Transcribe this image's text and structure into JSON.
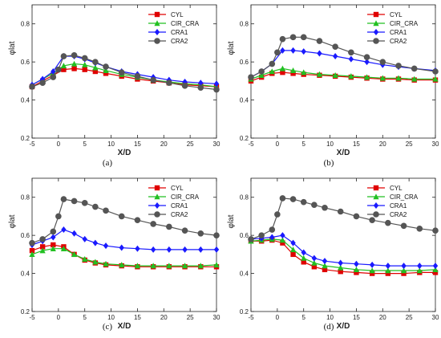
{
  "series_styles": [
    {
      "name": "CYL",
      "color": "#e00000",
      "marker": "square"
    },
    {
      "name": "CIR_CRA",
      "color": "#22c022",
      "marker": "triangle"
    },
    {
      "name": "CRA1",
      "color": "#1a1aff",
      "marker": "diamond"
    },
    {
      "name": "CRA2",
      "color": "#555555",
      "marker": "circle"
    }
  ],
  "chart_data": [
    {
      "type": "line",
      "caption": "(a)",
      "xlabel": "X/D",
      "ylabel": "φlat",
      "xlim": [
        -5,
        30
      ],
      "ylim": [
        0.2,
        0.9
      ],
      "xticks": [
        -5,
        0,
        5,
        10,
        15,
        20,
        25,
        30
      ],
      "yticks": [
        0.2,
        0.4,
        0.6,
        0.8
      ],
      "legend": "top-right",
      "series": [
        {
          "name": "CYL",
          "x": [
            -5,
            -3,
            -1,
            1,
            3,
            5,
            7,
            9,
            12,
            15,
            18,
            21,
            24,
            27,
            30
          ],
          "y": [
            0.47,
            0.5,
            0.53,
            0.56,
            0.565,
            0.56,
            0.55,
            0.54,
            0.525,
            0.51,
            0.5,
            0.49,
            0.48,
            0.475,
            0.47
          ]
        },
        {
          "name": "CIR_CRA",
          "x": [
            -5,
            -3,
            -1,
            1,
            3,
            5,
            7,
            9,
            12,
            15,
            18,
            21,
            24,
            27,
            30
          ],
          "y": [
            0.48,
            0.51,
            0.54,
            0.58,
            0.59,
            0.585,
            0.57,
            0.555,
            0.535,
            0.52,
            0.505,
            0.495,
            0.485,
            0.48,
            0.47
          ]
        },
        {
          "name": "CRA1",
          "x": [
            -5,
            -3,
            -1,
            1,
            3,
            5,
            7,
            9,
            12,
            15,
            18,
            21,
            24,
            27,
            30
          ],
          "y": [
            0.48,
            0.51,
            0.55,
            0.63,
            0.63,
            0.615,
            0.595,
            0.575,
            0.55,
            0.535,
            0.52,
            0.505,
            0.495,
            0.49,
            0.485
          ]
        },
        {
          "name": "CRA2",
          "x": [
            -5,
            -3,
            -1,
            0,
            1,
            3,
            5,
            7,
            9,
            12,
            15,
            18,
            21,
            24,
            27,
            30
          ],
          "y": [
            0.47,
            0.49,
            0.52,
            0.56,
            0.63,
            0.635,
            0.62,
            0.6,
            0.575,
            0.545,
            0.525,
            0.505,
            0.49,
            0.475,
            0.465,
            0.455
          ]
        }
      ]
    },
    {
      "type": "line",
      "caption": "(b)",
      "xlabel": "X/D",
      "ylabel": "φlat",
      "xlim": [
        -5,
        30
      ],
      "ylim": [
        0.2,
        0.9
      ],
      "xticks": [
        -5,
        0,
        5,
        10,
        15,
        20,
        25,
        30
      ],
      "yticks": [
        0.2,
        0.4,
        0.6,
        0.8
      ],
      "legend": "top-right",
      "series": [
        {
          "name": "CYL",
          "x": [
            -5,
            -3,
            -1,
            1,
            3,
            5,
            8,
            11,
            14,
            17,
            20,
            23,
            26,
            30
          ],
          "y": [
            0.5,
            0.52,
            0.54,
            0.545,
            0.54,
            0.535,
            0.53,
            0.525,
            0.52,
            0.515,
            0.51,
            0.51,
            0.505,
            0.505
          ]
        },
        {
          "name": "CIR_CRA",
          "x": [
            -5,
            -3,
            -1,
            1,
            3,
            5,
            8,
            11,
            14,
            17,
            20,
            23,
            26,
            30
          ],
          "y": [
            0.51,
            0.53,
            0.55,
            0.565,
            0.555,
            0.545,
            0.535,
            0.53,
            0.525,
            0.52,
            0.515,
            0.515,
            0.51,
            0.51
          ]
        },
        {
          "name": "CRA1",
          "x": [
            -5,
            -3,
            -1,
            1,
            3,
            5,
            8,
            11,
            14,
            17,
            20,
            23,
            26,
            30
          ],
          "y": [
            0.52,
            0.55,
            0.59,
            0.66,
            0.66,
            0.655,
            0.645,
            0.63,
            0.615,
            0.6,
            0.585,
            0.575,
            0.565,
            0.555
          ]
        },
        {
          "name": "CRA2",
          "x": [
            -5,
            -3,
            -1,
            0,
            1,
            3,
            5,
            8,
            11,
            14,
            17,
            20,
            23,
            26,
            30
          ],
          "y": [
            0.52,
            0.55,
            0.59,
            0.65,
            0.72,
            0.73,
            0.73,
            0.71,
            0.68,
            0.65,
            0.625,
            0.6,
            0.58,
            0.565,
            0.55
          ]
        }
      ]
    },
    {
      "type": "line",
      "caption": "(c)",
      "xlabel": "X/D",
      "ylabel": "φlat",
      "xlim": [
        -5,
        30
      ],
      "ylim": [
        0.2,
        0.9
      ],
      "xticks": [
        -5,
        0,
        5,
        10,
        15,
        20,
        25,
        30
      ],
      "yticks": [
        0.2,
        0.4,
        0.6,
        0.8
      ],
      "legend": "top-right",
      "series": [
        {
          "name": "CYL",
          "x": [
            -5,
            -3,
            -1,
            1,
            3,
            5,
            7,
            9,
            12,
            15,
            18,
            21,
            24,
            27,
            30
          ],
          "y": [
            0.52,
            0.54,
            0.55,
            0.54,
            0.5,
            0.47,
            0.455,
            0.445,
            0.44,
            0.435,
            0.435,
            0.435,
            0.435,
            0.435,
            0.435
          ]
        },
        {
          "name": "CIR_CRA",
          "x": [
            -5,
            -3,
            -1,
            1,
            3,
            5,
            7,
            9,
            12,
            15,
            18,
            21,
            24,
            27,
            30
          ],
          "y": [
            0.5,
            0.52,
            0.53,
            0.53,
            0.5,
            0.475,
            0.46,
            0.45,
            0.445,
            0.44,
            0.44,
            0.44,
            0.44,
            0.44,
            0.445
          ]
        },
        {
          "name": "CRA1",
          "x": [
            -5,
            -3,
            -1,
            1,
            3,
            5,
            7,
            9,
            12,
            15,
            18,
            21,
            24,
            27,
            30
          ],
          "y": [
            0.55,
            0.57,
            0.59,
            0.63,
            0.61,
            0.58,
            0.56,
            0.545,
            0.535,
            0.53,
            0.525,
            0.525,
            0.525,
            0.525,
            0.525
          ]
        },
        {
          "name": "CRA2",
          "x": [
            -5,
            -3,
            -1,
            0,
            1,
            3,
            5,
            7,
            9,
            12,
            15,
            18,
            21,
            24,
            27,
            30
          ],
          "y": [
            0.56,
            0.58,
            0.62,
            0.7,
            0.79,
            0.78,
            0.77,
            0.75,
            0.73,
            0.7,
            0.68,
            0.66,
            0.645,
            0.625,
            0.61,
            0.6
          ]
        }
      ]
    },
    {
      "type": "line",
      "caption": "(d)",
      "xlabel": "X/D",
      "ylabel": "φlat",
      "xlim": [
        -5,
        30
      ],
      "ylim": [
        0.2,
        0.9
      ],
      "xticks": [
        -5,
        0,
        5,
        10,
        15,
        20,
        25,
        30
      ],
      "yticks": [
        0.2,
        0.4,
        0.6,
        0.8
      ],
      "legend": "top-right",
      "series": [
        {
          "name": "CYL",
          "x": [
            -5,
            -3,
            -1,
            1,
            3,
            5,
            7,
            9,
            12,
            15,
            18,
            21,
            24,
            27,
            30
          ],
          "y": [
            0.57,
            0.57,
            0.575,
            0.56,
            0.5,
            0.46,
            0.435,
            0.42,
            0.41,
            0.405,
            0.4,
            0.4,
            0.4,
            0.405,
            0.405
          ]
        },
        {
          "name": "CIR_CRA",
          "x": [
            -5,
            -3,
            -1,
            1,
            3,
            5,
            7,
            9,
            12,
            15,
            18,
            21,
            24,
            27,
            30
          ],
          "y": [
            0.57,
            0.575,
            0.58,
            0.575,
            0.525,
            0.48,
            0.455,
            0.44,
            0.43,
            0.42,
            0.415,
            0.415,
            0.415,
            0.415,
            0.42
          ]
        },
        {
          "name": "CRA1",
          "x": [
            -5,
            -3,
            -1,
            1,
            3,
            5,
            7,
            9,
            12,
            15,
            18,
            21,
            24,
            27,
            30
          ],
          "y": [
            0.58,
            0.585,
            0.59,
            0.6,
            0.56,
            0.51,
            0.48,
            0.465,
            0.455,
            0.45,
            0.445,
            0.44,
            0.44,
            0.44,
            0.44
          ]
        },
        {
          "name": "CRA2",
          "x": [
            -5,
            -3,
            -1,
            0,
            1,
            3,
            5,
            7,
            9,
            12,
            15,
            18,
            21,
            24,
            27,
            30
          ],
          "y": [
            0.58,
            0.6,
            0.63,
            0.71,
            0.795,
            0.79,
            0.775,
            0.76,
            0.745,
            0.725,
            0.7,
            0.68,
            0.665,
            0.65,
            0.635,
            0.625
          ]
        }
      ]
    }
  ]
}
